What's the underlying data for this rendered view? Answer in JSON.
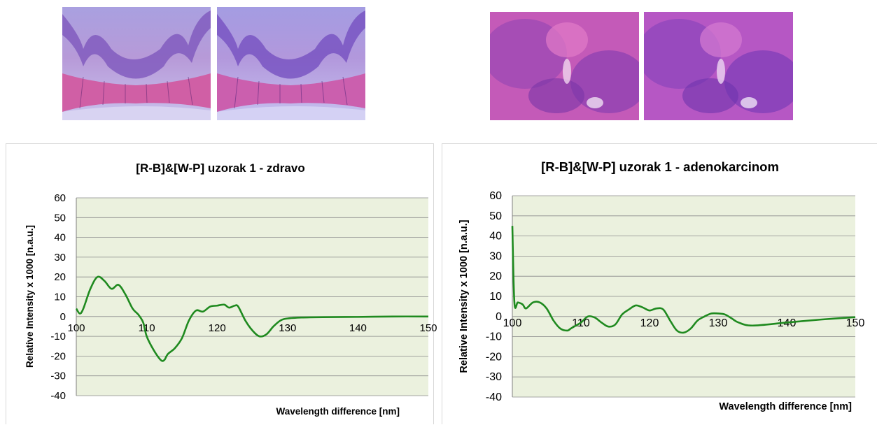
{
  "micrographs": {
    "healthy": [
      {
        "icon": "histology-micrograph-healthy-tissue"
      },
      {
        "icon": "histology-micrograph-healthy-tissue-processed"
      }
    ],
    "adenocarcinoma": [
      {
        "icon": "histology-micrograph-adenocarcinoma"
      },
      {
        "icon": "histology-micrograph-adenocarcinoma-processed"
      }
    ]
  },
  "chart_data": [
    {
      "type": "line",
      "title": "[R-B]&[W-P] uzorak 1 - zdravo",
      "xlabel": "Wavelength difference [nm]",
      "ylabel": "Relative Intensity x 1000 [n.a.u.]",
      "xlim": [
        100,
        150
      ],
      "ylim": [
        -40,
        60
      ],
      "x_ticks": [
        "100",
        "110",
        "120",
        "130",
        "140",
        "150"
      ],
      "y_ticks": [
        "60",
        "50",
        "40",
        "30",
        "20",
        "10",
        "0",
        "-10",
        "-20",
        "-30",
        "-40"
      ],
      "grid": true,
      "plot_background": "#ebf1de",
      "line_color": "#1f8a1f",
      "series": [
        {
          "x": [
            100,
            100.5,
            101,
            102,
            103,
            104,
            105,
            106,
            107,
            108,
            108.8,
            109.5,
            110,
            111,
            112,
            112.5,
            113,
            114,
            115,
            116,
            117,
            118,
            119,
            120,
            121,
            121.7,
            122.5,
            123,
            124,
            125,
            126,
            127,
            128,
            129,
            130,
            132,
            135,
            140,
            145,
            150
          ],
          "y": [
            4,
            1.5,
            4,
            14,
            20,
            18,
            14,
            16,
            11,
            4,
            1,
            -3,
            -10,
            -17,
            -22,
            -22,
            -19,
            -16,
            -11,
            -2,
            3,
            2.5,
            5,
            5.5,
            6,
            4.5,
            5.5,
            5,
            -2,
            -7,
            -10,
            -9,
            -5,
            -2,
            -1,
            -0.5,
            -0.3,
            -0.2,
            0,
            0
          ]
        }
      ]
    },
    {
      "type": "line",
      "title": "[R-B]&[W-P] uzorak 1 - adenokarcinom",
      "xlabel": "Wavelength difference [nm]",
      "ylabel": "Relative Intensity x 1000 [n.a.u.]",
      "xlim": [
        100,
        150
      ],
      "ylim": [
        -40,
        60
      ],
      "x_ticks": [
        "100",
        "110",
        "120",
        "130",
        "140",
        "150"
      ],
      "y_ticks": [
        "60",
        "50",
        "40",
        "30",
        "20",
        "10",
        "0",
        "-10",
        "-20",
        "-30",
        "-40"
      ],
      "grid": true,
      "plot_background": "#ebf1de",
      "line_color": "#1f8a1f",
      "series": [
        {
          "x": [
            100,
            100.3,
            100.8,
            101.5,
            102,
            103,
            104,
            105,
            106,
            107,
            108,
            108.5,
            109,
            110,
            111,
            112,
            113,
            114,
            115,
            116,
            117,
            118,
            119,
            120,
            121,
            122,
            123,
            124,
            125,
            126,
            127,
            128,
            129,
            130,
            131,
            132,
            133,
            135,
            140,
            145,
            150
          ],
          "y": [
            45,
            7,
            7,
            6,
            4,
            7,
            7,
            4,
            -2,
            -6,
            -7,
            -6,
            -5,
            -3,
            0,
            -0.5,
            -3,
            -5,
            -4,
            1,
            3.5,
            5.5,
            4.5,
            3,
            4,
            3.5,
            -2,
            -7,
            -8,
            -6,
            -2,
            0,
            1.5,
            1.5,
            1,
            -1,
            -3,
            -4.5,
            -3,
            -1.5,
            -0.3
          ]
        }
      ]
    }
  ]
}
